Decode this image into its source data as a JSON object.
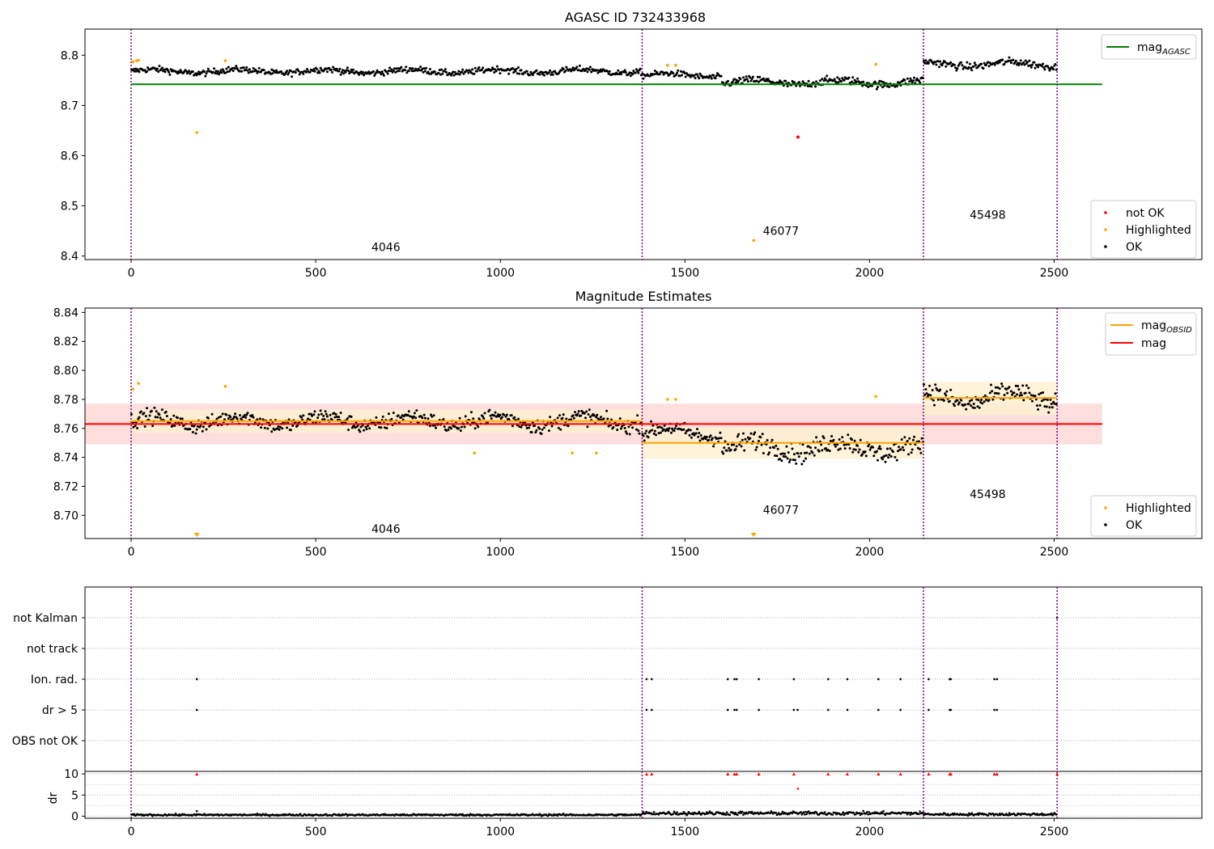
{
  "colors": {
    "ok": "#000000",
    "highlighted": "#ffa500",
    "not_ok": "#ff0000",
    "mag_agasc": "#008000",
    "mag_obsid": "#ffa500",
    "mag": "#ff0000",
    "obs_boundary": "#800080",
    "mag_band": "#ffd6d6",
    "obsid_band": "#fff0d0"
  },
  "chart_data": [
    {
      "type": "scatter",
      "title": "AGASC ID 732433968",
      "xlim": [
        -125,
        2900
      ],
      "ylim": [
        8.393,
        8.852
      ],
      "xticks": [
        0,
        500,
        1000,
        1500,
        2000,
        2500
      ],
      "yticks": [
        8.4,
        8.5,
        8.6,
        8.7,
        8.8
      ],
      "grid": false,
      "legend": [
        {
          "kind": "line",
          "name": "mag",
          "sub": "AGASC",
          "color": "#008000"
        }
      ],
      "legend2": [
        {
          "kind": "point",
          "name": "not OK",
          "color": "#ff0000"
        },
        {
          "kind": "point",
          "name": "Highlighted",
          "color": "#ffa500"
        },
        {
          "kind": "point",
          "name": "OK",
          "color": "#000000"
        }
      ],
      "mag_agasc": 8.742,
      "obs_boundaries": [
        0,
        1384,
        2146,
        2508
      ],
      "obs_labels": [
        {
          "text": "4046",
          "x": 690,
          "y": 8.41
        },
        {
          "text": "46077",
          "x": 1760,
          "y": 8.442
        },
        {
          "text": "45498",
          "x": 2320,
          "y": 8.474
        }
      ],
      "ok_segments": [
        {
          "x0": 0,
          "x1": 1384,
          "mean": 8.768,
          "noise": 0.008
        },
        {
          "x0": 1384,
          "x1": 1600,
          "mean": 8.76,
          "noise": 0.008
        },
        {
          "x0": 1600,
          "x1": 2146,
          "mean": 8.746,
          "noise": 0.01
        },
        {
          "x0": 2146,
          "x1": 2508,
          "mean": 8.782,
          "noise": 0.01
        }
      ],
      "highlighted_points": [
        {
          "x": 5,
          "y": 8.787
        },
        {
          "x": 15,
          "y": 8.789
        },
        {
          "x": 20,
          "y": 8.79
        },
        {
          "x": 178,
          "y": 8.646
        },
        {
          "x": 255,
          "y": 8.789
        },
        {
          "x": 1453,
          "y": 8.78
        },
        {
          "x": 1475,
          "y": 8.78
        },
        {
          "x": 1686,
          "y": 8.431
        },
        {
          "x": 2017,
          "y": 8.782
        }
      ],
      "not_ok_points": [
        {
          "x": 1806,
          "y": 8.637
        }
      ]
    },
    {
      "type": "scatter",
      "title": "Magnitude Estimates",
      "xlim": [
        -125,
        2900
      ],
      "ylim": [
        8.684,
        8.843
      ],
      "xticks": [
        0,
        500,
        1000,
        1500,
        2000,
        2500
      ],
      "yticks": [
        8.7,
        8.72,
        8.74,
        8.76,
        8.78,
        8.8,
        8.82,
        8.84
      ],
      "grid": false,
      "legend": [
        {
          "kind": "line",
          "name": "mag",
          "sub": "OBSID",
          "color": "#ffa500"
        },
        {
          "kind": "line",
          "name": "mag",
          "sub": "",
          "color": "#ff0000"
        }
      ],
      "legend2": [
        {
          "kind": "point",
          "name": "Highlighted",
          "color": "#ffa500"
        },
        {
          "kind": "point",
          "name": "OK",
          "color": "#000000"
        }
      ],
      "mag": 8.763,
      "mag_band": [
        8.749,
        8.777
      ],
      "mag_xrange": [
        -125,
        2630
      ],
      "obs_boundaries": [
        0,
        1384,
        2146,
        2508
      ],
      "obs_labels": [
        {
          "text": "4046",
          "x": 690,
          "y": 8.688
        },
        {
          "text": "46077",
          "x": 1760,
          "y": 8.701
        },
        {
          "text": "45498",
          "x": 2320,
          "y": 8.712
        }
      ],
      "obsid_mags": [
        {
          "x0": 0,
          "x1": 1384,
          "mag": 8.765,
          "lo": 8.757,
          "hi": 8.773
        },
        {
          "x0": 1384,
          "x1": 2146,
          "mag": 8.75,
          "lo": 8.739,
          "hi": 8.761
        },
        {
          "x0": 2146,
          "x1": 2508,
          "mag": 8.781,
          "lo": 8.769,
          "hi": 8.792
        }
      ],
      "ok_segments": [
        {
          "x0": 0,
          "x1": 1384,
          "mean": 8.765,
          "noise": 0.007
        },
        {
          "x0": 1384,
          "x1": 1600,
          "mean": 8.757,
          "noise": 0.007
        },
        {
          "x0": 1600,
          "x1": 2146,
          "mean": 8.747,
          "noise": 0.009
        },
        {
          "x0": 2146,
          "x1": 2508,
          "mean": 8.781,
          "noise": 0.009
        }
      ],
      "highlighted_points": [
        {
          "x": 5,
          "y": 8.787
        },
        {
          "x": 20,
          "y": 8.791
        },
        {
          "x": 255,
          "y": 8.789
        },
        {
          "x": 930,
          "y": 8.743
        },
        {
          "x": 1195,
          "y": 8.743
        },
        {
          "x": 1260,
          "y": 8.743
        },
        {
          "x": 1453,
          "y": 8.78
        },
        {
          "x": 1475,
          "y": 8.78
        },
        {
          "x": 2017,
          "y": 8.782
        }
      ],
      "offscale_markers": [
        {
          "x": 178
        },
        {
          "x": 1686
        }
      ]
    },
    {
      "type": "scatter",
      "title": "",
      "xlim": [
        -125,
        2900
      ],
      "categories": [
        "not Kalman",
        "not track",
        "Ion. rad.",
        "dr > 5",
        "OBS not OK"
      ],
      "obs_boundaries": [
        0,
        1384,
        2146,
        2508
      ],
      "flag_points": {
        "not Kalman": [
          2508
        ],
        "not track": [],
        "Ion. rad.": [
          178,
          1396,
          1410,
          1616,
          1634,
          1640,
          1700,
          1795,
          1888,
          1940,
          2024,
          2084,
          2160,
          2217,
          2220,
          2338,
          2345
        ],
        "dr > 5": [
          178,
          1396,
          1410,
          1616,
          1634,
          1640,
          1700,
          1795,
          1805,
          1888,
          1940,
          2024,
          2084,
          2160,
          2217,
          2220,
          2338,
          2345
        ],
        "OBS not OK": []
      }
    },
    {
      "type": "scatter",
      "title": "",
      "ylabel": "dr",
      "xlim": [
        -125,
        2900
      ],
      "ylim": [
        -0.5,
        10.6
      ],
      "xticks": [
        0,
        500,
        1000,
        1500,
        2000,
        2500
      ],
      "yticks": [
        0,
        5,
        10
      ],
      "obs_boundaries": [
        0,
        1384,
        2146,
        2508
      ],
      "dr_segments": [
        {
          "x0": 0,
          "x1": 1384,
          "mean": 0.3,
          "noise": 0.15
        },
        {
          "x0": 1384,
          "x1": 2146,
          "mean": 0.7,
          "noise": 0.3
        },
        {
          "x0": 2146,
          "x1": 2508,
          "mean": 0.45,
          "noise": 0.2
        }
      ],
      "extra_points": [
        {
          "x": 178,
          "y": 1.2
        },
        {
          "x": 1806,
          "y": 6.5
        }
      ],
      "capped_markers": [
        178,
        1396,
        1410,
        1616,
        1634,
        1640,
        1700,
        1795,
        1888,
        1940,
        2024,
        2084,
        2160,
        2217,
        2220,
        2338,
        2345,
        2508
      ],
      "cap_value": 10
    }
  ]
}
